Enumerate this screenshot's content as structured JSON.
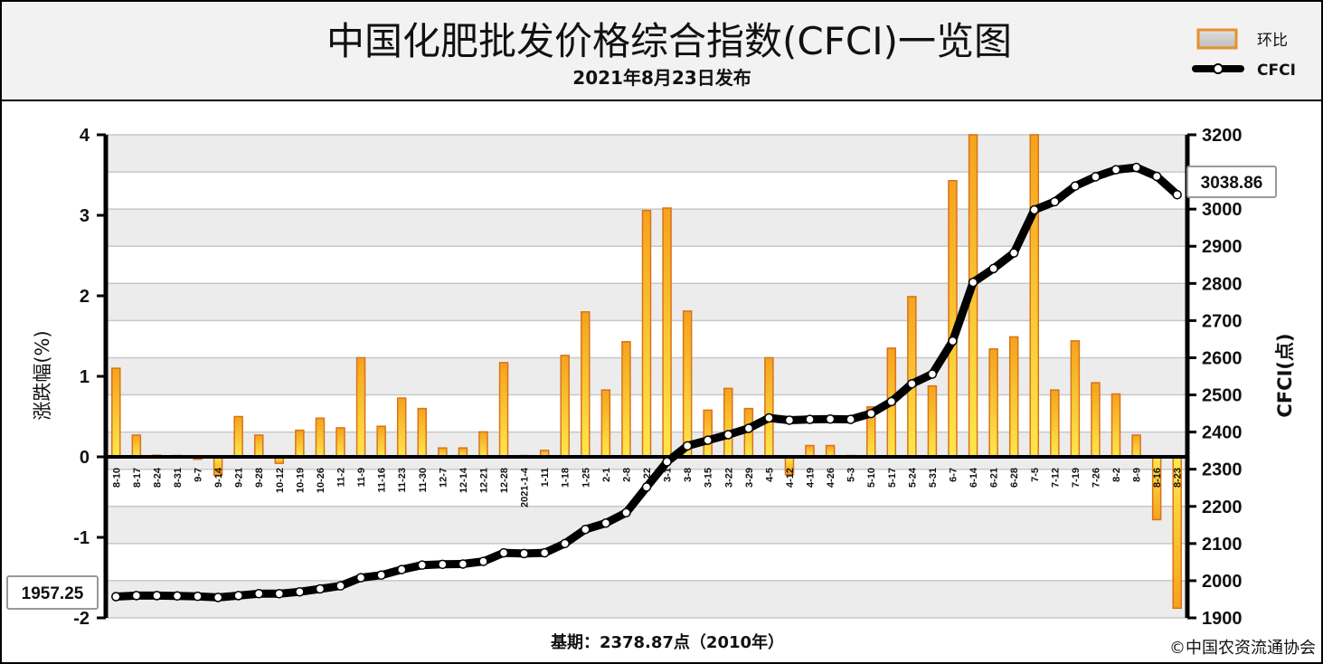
{
  "header": {
    "title": "中国化肥批发价格综合指数(CFCI)一览图",
    "subtitle": "2021年8月23日发布"
  },
  "legend": {
    "bar_label": "环比",
    "line_label": "CFCI"
  },
  "footer": {
    "base_period": "基期：2378.87点（2010年）",
    "copyright": "©中国农资流通协会"
  },
  "callouts": {
    "first_value": "1957.25",
    "last_value": "3038.86"
  },
  "colors": {
    "bar_fill_top": "#f6a21d",
    "bar_fill_bottom": "#fde84a",
    "bar_stroke": "#d9731a",
    "line": "#000000",
    "marker_fill": "#ffffff",
    "band": "#ececec",
    "grid": "#c8c8c8",
    "header_bg": "#f2f2f2"
  },
  "chart_data": {
    "type": "bar+line",
    "categories": [
      "8-10",
      "8-17",
      "8-24",
      "8-31",
      "9-7",
      "9-14",
      "9-21",
      "9-28",
      "10-12",
      "10-19",
      "10-26",
      "11-2",
      "11-9",
      "11-16",
      "11-23",
      "11-30",
      "12-7",
      "12-14",
      "12-21",
      "12-28",
      "2021-1-4",
      "1-11",
      "1-18",
      "1-25",
      "2-1",
      "2-8",
      "2-22",
      "3-1",
      "3-8",
      "3-15",
      "3-22",
      "3-29",
      "4-5",
      "4-12",
      "4-19",
      "4-26",
      "5-3",
      "5-10",
      "5-17",
      "5-24",
      "5-31",
      "6-7",
      "6-14",
      "6-21",
      "6-28",
      "7-5",
      "7-12",
      "7-19",
      "7-26",
      "8-2",
      "8-9",
      "8-16",
      "8-23"
    ],
    "series": [
      {
        "name": "环比",
        "axis": "left",
        "type": "bar",
        "values": [
          1.1,
          0.27,
          0.02,
          0.0,
          -0.03,
          -0.23,
          0.5,
          0.27,
          -0.08,
          0.33,
          0.48,
          0.36,
          1.23,
          0.38,
          0.73,
          0.6,
          0.11,
          0.11,
          0.31,
          1.17,
          0.0,
          0.08,
          1.26,
          1.8,
          0.83,
          1.43,
          3.06,
          3.09,
          1.81,
          0.58,
          0.85,
          0.6,
          1.23,
          -0.22,
          0.14,
          0.14,
          0.0,
          0.62,
          1.35,
          1.99,
          0.88,
          3.43,
          4.0,
          1.34,
          1.49,
          4.0,
          0.83,
          1.44,
          0.92,
          0.78,
          0.27,
          -0.78,
          -1.88
        ]
      },
      {
        "name": "CFCI",
        "axis": "right",
        "type": "line",
        "values": [
          1957.25,
          1960,
          1960,
          1959,
          1958,
          1955,
          1960,
          1965,
          1965,
          1970,
          1978,
          1986,
          2008,
          2015,
          2030,
          2042,
          2044,
          2045,
          2052,
          2075,
          2073,
          2075,
          2100,
          2138,
          2155,
          2183,
          2252,
          2320,
          2363,
          2378,
          2393,
          2410,
          2438,
          2432,
          2434,
          2435,
          2434,
          2450,
          2482,
          2530,
          2556,
          2645,
          2803,
          2840,
          2882,
          2998,
          3020,
          3062,
          3087,
          3106,
          3112,
          3088,
          3038.86
        ]
      }
    ],
    "y_left": {
      "label": "涨跌幅(%)",
      "ticks": [
        4,
        3,
        2,
        1,
        0,
        -1,
        -2
      ],
      "range": [
        -2,
        4
      ]
    },
    "y_right": {
      "label": "CFCI(点)",
      "ticks": [
        3200,
        3100,
        3000,
        2900,
        2800,
        2700,
        2600,
        2500,
        2400,
        2300,
        2200,
        2100,
        2000,
        1900
      ],
      "range": [
        1900,
        3200
      ]
    },
    "grid": true,
    "legend_position": "top-right"
  }
}
